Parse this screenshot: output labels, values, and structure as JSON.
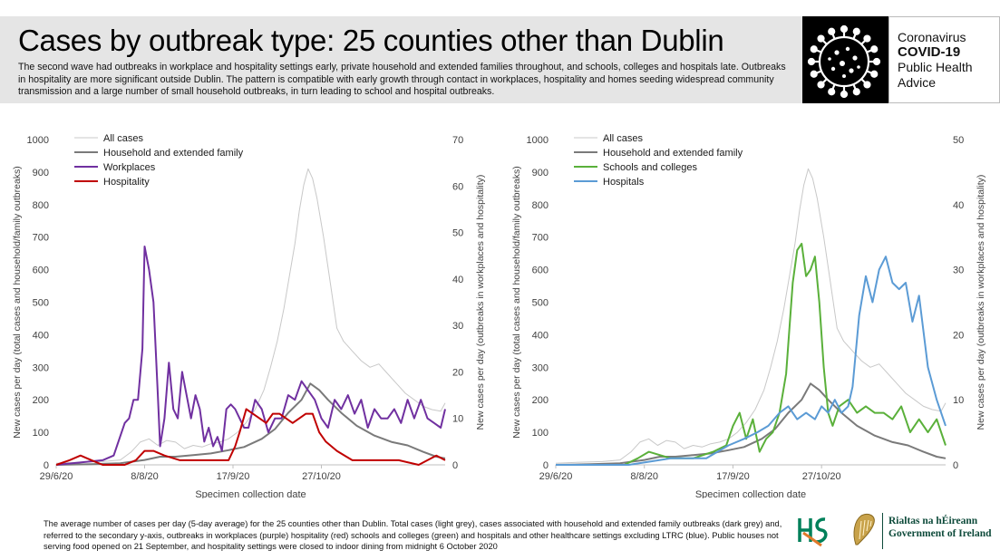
{
  "header": {
    "title": "Cases by outbreak type: 25 counties other than Dublin",
    "subtitle": "The second wave had outbreaks in workplace and hospitality settings early, private household and extended families throughout, and schools, colleges and hospitals late. Outbreaks in hospitality are more significant outside Dublin. The pattern is compatible with early growth through contact in workplaces, hospitality and homes seeding widespread community transmission and a large number of small household outbreaks, in turn leading to school and hospital outbreaks."
  },
  "branding": {
    "line1": "Coronavirus",
    "line2": "COVID-19",
    "line3": "Public Health",
    "line4": "Advice",
    "hse_logo": "HSE",
    "harp_icon": "harp-icon",
    "gov_line1": "Rialtas na hÉireann",
    "gov_line2": "Government of Ireland"
  },
  "colors": {
    "all_cases": "#c8c8c8",
    "household": "#7a7a7a",
    "workplaces": "#7030a0",
    "hospitality": "#c00000",
    "schools": "#5ab03a",
    "hospitals": "#5b9bd5"
  },
  "footnote": "The average number of cases per day (5-day average) for the 25 counties other than Dublin. Total cases (light grey), cases associated with household and extended family outbreaks (dark grey) and, referred to the secondary y-axis, outbreaks in workplaces (purple) hospitality (red) schools and colleges (green) and hospitals and other healthcare settings excluding LTRC (blue). Public houses not serving food opened on 21 September, and hospitality settings were closed to indoor dining from midnight 6 October 2020",
  "chart_data": [
    {
      "type": "line",
      "xlabel": "Specimen collection date",
      "ylabel": "New cases per day (total cases and household/family outbreaks)",
      "y2label": "New cases per day (outbreaks in workplaces and hospitality)",
      "x_range": [
        "2020-06-29",
        "2020-12-22"
      ],
      "ylim": [
        0,
        1000
      ],
      "y2lim": [
        0,
        70
      ],
      "yticks": [
        "0",
        "100",
        "200",
        "300",
        "400",
        "500",
        "600",
        "700",
        "800",
        "900",
        "1000"
      ],
      "y2ticks": [
        "0",
        "10",
        "20",
        "30",
        "40",
        "50",
        "60",
        "70"
      ],
      "xticks": [
        {
          "label": "29/6/20",
          "date": "2020-06-29"
        },
        {
          "label": "8/8/20",
          "date": "2020-08-08"
        },
        {
          "label": "17/9/20",
          "date": "2020-09-17"
        },
        {
          "label": "27/10/20",
          "date": "2020-10-27"
        }
      ],
      "legend_position": "top-left",
      "series": [
        {
          "name": "All cases",
          "axis": "primary",
          "color": "#c8c8c8",
          "x": [
            "2020-06-29",
            "2020-07-10",
            "2020-07-20",
            "2020-07-28",
            "2020-08-02",
            "2020-08-06",
            "2020-08-10",
            "2020-08-14",
            "2020-08-18",
            "2020-08-22",
            "2020-08-26",
            "2020-08-30",
            "2020-09-03",
            "2020-09-07",
            "2020-09-11",
            "2020-09-15",
            "2020-09-19",
            "2020-09-23",
            "2020-09-27",
            "2020-10-01",
            "2020-10-04",
            "2020-10-07",
            "2020-10-10",
            "2020-10-13",
            "2020-10-15",
            "2020-10-17",
            "2020-10-19",
            "2020-10-21",
            "2020-10-23",
            "2020-10-25",
            "2020-10-28",
            "2020-10-31",
            "2020-11-03",
            "2020-11-06",
            "2020-11-10",
            "2020-11-14",
            "2020-11-18",
            "2020-11-22",
            "2020-11-26",
            "2020-11-30",
            "2020-12-04",
            "2020-12-08",
            "2020-12-12",
            "2020-12-16",
            "2020-12-20",
            "2020-12-22"
          ],
          "y": [
            5,
            8,
            10,
            15,
            40,
            70,
            80,
            60,
            75,
            70,
            50,
            60,
            55,
            65,
            70,
            80,
            100,
            130,
            170,
            230,
            300,
            380,
            480,
            600,
            680,
            780,
            860,
            910,
            880,
            820,
            700,
            560,
            420,
            380,
            350,
            320,
            300,
            310,
            280,
            250,
            220,
            200,
            180,
            170,
            165,
            190
          ]
        },
        {
          "name": "Household and extended family",
          "axis": "primary",
          "color": "#7a7a7a",
          "x": [
            "2020-06-29",
            "2020-07-15",
            "2020-07-28",
            "2020-08-08",
            "2020-08-15",
            "2020-08-22",
            "2020-08-30",
            "2020-09-07",
            "2020-09-15",
            "2020-09-22",
            "2020-09-30",
            "2020-10-06",
            "2020-10-12",
            "2020-10-18",
            "2020-10-22",
            "2020-10-26",
            "2020-10-30",
            "2020-11-05",
            "2020-11-12",
            "2020-11-20",
            "2020-11-28",
            "2020-12-05",
            "2020-12-12",
            "2020-12-18",
            "2020-12-22"
          ],
          "y": [
            0,
            2,
            5,
            15,
            25,
            25,
            30,
            35,
            45,
            55,
            80,
            110,
            160,
            200,
            250,
            230,
            200,
            160,
            120,
            90,
            70,
            60,
            40,
            25,
            20
          ]
        },
        {
          "name": "Workplaces",
          "axis": "secondary",
          "color": "#7030a0",
          "x": [
            "2020-06-29",
            "2020-07-20",
            "2020-07-25",
            "2020-07-30",
            "2020-08-01",
            "2020-08-03",
            "2020-08-05",
            "2020-08-07",
            "2020-08-08",
            "2020-08-10",
            "2020-08-12",
            "2020-08-14",
            "2020-08-15",
            "2020-08-17",
            "2020-08-19",
            "2020-08-21",
            "2020-08-23",
            "2020-08-25",
            "2020-08-27",
            "2020-08-29",
            "2020-08-31",
            "2020-09-02",
            "2020-09-04",
            "2020-09-06",
            "2020-09-08",
            "2020-09-10",
            "2020-09-12",
            "2020-09-14",
            "2020-09-16",
            "2020-09-18",
            "2020-09-20",
            "2020-09-22",
            "2020-09-24",
            "2020-09-27",
            "2020-09-30",
            "2020-10-03",
            "2020-10-06",
            "2020-10-09",
            "2020-10-12",
            "2020-10-15",
            "2020-10-18",
            "2020-10-21",
            "2020-10-24",
            "2020-10-27",
            "2020-10-30",
            "2020-11-02",
            "2020-11-05",
            "2020-11-08",
            "2020-11-11",
            "2020-11-14",
            "2020-11-17",
            "2020-11-20",
            "2020-11-23",
            "2020-11-26",
            "2020-11-29",
            "2020-12-02",
            "2020-12-05",
            "2020-12-08",
            "2020-12-11",
            "2020-12-14",
            "2020-12-17",
            "2020-12-20",
            "2020-12-22"
          ],
          "y": [
            0,
            1,
            2,
            9,
            10,
            14,
            14,
            25,
            47,
            42,
            35,
            15,
            4,
            10,
            22,
            12,
            10,
            20,
            15,
            10,
            15,
            12,
            5,
            8,
            4,
            6,
            3,
            12,
            13,
            12,
            10,
            8,
            8,
            14,
            12,
            7,
            10,
            10,
            15,
            14,
            18,
            16,
            14,
            10,
            8,
            14,
            12,
            15,
            11,
            14,
            8,
            12,
            10,
            10,
            12,
            9,
            14,
            10,
            14,
            10,
            9,
            8,
            12
          ]
        },
        {
          "name": "Hospitality",
          "axis": "secondary",
          "color": "#c00000",
          "x": [
            "2020-06-29",
            "2020-07-05",
            "2020-07-10",
            "2020-07-15",
            "2020-07-20",
            "2020-07-25",
            "2020-07-30",
            "2020-08-04",
            "2020-08-08",
            "2020-08-12",
            "2020-08-17",
            "2020-08-24",
            "2020-09-01",
            "2020-09-08",
            "2020-09-15",
            "2020-09-18",
            "2020-09-20",
            "2020-09-23",
            "2020-09-26",
            "2020-09-29",
            "2020-10-02",
            "2020-10-05",
            "2020-10-08",
            "2020-10-11",
            "2020-10-14",
            "2020-10-17",
            "2020-10-20",
            "2020-10-23",
            "2020-10-26",
            "2020-10-29",
            "2020-11-03",
            "2020-11-10",
            "2020-11-20",
            "2020-12-01",
            "2020-12-10",
            "2020-12-18",
            "2020-12-22"
          ],
          "y": [
            0,
            1,
            2,
            1,
            0,
            0,
            0,
            1,
            3,
            3,
            2,
            1,
            1,
            1,
            1,
            4,
            7,
            12,
            11,
            10,
            9,
            11,
            11,
            10,
            9,
            10,
            11,
            11,
            7,
            5,
            3,
            1,
            1,
            1,
            0,
            2,
            1
          ]
        }
      ]
    },
    {
      "type": "line",
      "xlabel": "Specimen collection date",
      "ylabel": "New cases per day (total cases and household/family outbreaks)",
      "y2label": "New cases per day (outbreaks in workplaces and hospitality)",
      "x_range": [
        "2020-06-29",
        "2020-12-22"
      ],
      "ylim": [
        0,
        1000
      ],
      "y2lim": [
        0,
        50
      ],
      "yticks": [
        "0",
        "100",
        "200",
        "300",
        "400",
        "500",
        "600",
        "700",
        "800",
        "900",
        "1000"
      ],
      "y2ticks": [
        "0",
        "10",
        "20",
        "30",
        "40",
        "50"
      ],
      "xticks": [
        {
          "label": "29/6/20",
          "date": "2020-06-29"
        },
        {
          "label": "8/8/20",
          "date": "2020-08-08"
        },
        {
          "label": "17/9/20",
          "date": "2020-09-17"
        },
        {
          "label": "27/10/20",
          "date": "2020-10-27"
        }
      ],
      "legend_position": "top-left",
      "series": [
        {
          "name": "All cases",
          "axis": "primary",
          "color": "#c8c8c8",
          "x": [
            "2020-06-29",
            "2020-07-10",
            "2020-07-20",
            "2020-07-28",
            "2020-08-02",
            "2020-08-06",
            "2020-08-10",
            "2020-08-14",
            "2020-08-18",
            "2020-08-22",
            "2020-08-26",
            "2020-08-30",
            "2020-09-03",
            "2020-09-07",
            "2020-09-11",
            "2020-09-15",
            "2020-09-19",
            "2020-09-23",
            "2020-09-27",
            "2020-10-01",
            "2020-10-04",
            "2020-10-07",
            "2020-10-10",
            "2020-10-13",
            "2020-10-15",
            "2020-10-17",
            "2020-10-19",
            "2020-10-21",
            "2020-10-23",
            "2020-10-25",
            "2020-10-28",
            "2020-10-31",
            "2020-11-03",
            "2020-11-06",
            "2020-11-10",
            "2020-11-14",
            "2020-11-18",
            "2020-11-22",
            "2020-11-26",
            "2020-11-30",
            "2020-12-04",
            "2020-12-08",
            "2020-12-12",
            "2020-12-16",
            "2020-12-20",
            "2020-12-22"
          ],
          "y": [
            5,
            8,
            10,
            15,
            40,
            70,
            80,
            60,
            75,
            70,
            50,
            60,
            55,
            65,
            70,
            80,
            100,
            130,
            170,
            230,
            300,
            380,
            480,
            600,
            680,
            780,
            860,
            910,
            880,
            820,
            700,
            560,
            420,
            380,
            350,
            320,
            300,
            310,
            280,
            250,
            220,
            200,
            180,
            170,
            165,
            190
          ]
        },
        {
          "name": "Household and extended family",
          "axis": "primary",
          "color": "#7a7a7a",
          "x": [
            "2020-06-29",
            "2020-07-15",
            "2020-07-28",
            "2020-08-08",
            "2020-08-15",
            "2020-08-22",
            "2020-08-30",
            "2020-09-07",
            "2020-09-15",
            "2020-09-22",
            "2020-09-30",
            "2020-10-06",
            "2020-10-12",
            "2020-10-18",
            "2020-10-22",
            "2020-10-26",
            "2020-10-30",
            "2020-11-05",
            "2020-11-12",
            "2020-11-20",
            "2020-11-28",
            "2020-12-05",
            "2020-12-12",
            "2020-12-18",
            "2020-12-22"
          ],
          "y": [
            0,
            2,
            5,
            15,
            25,
            25,
            30,
            35,
            45,
            55,
            80,
            110,
            160,
            200,
            250,
            230,
            200,
            160,
            120,
            90,
            70,
            60,
            40,
            25,
            20
          ]
        },
        {
          "name": "Schools and colleges",
          "axis": "secondary",
          "color": "#5ab03a",
          "x": [
            "2020-06-29",
            "2020-07-30",
            "2020-08-05",
            "2020-08-10",
            "2020-08-20",
            "2020-08-30",
            "2020-09-08",
            "2020-09-14",
            "2020-09-17",
            "2020-09-20",
            "2020-09-23",
            "2020-09-26",
            "2020-09-29",
            "2020-10-02",
            "2020-10-05",
            "2020-10-08",
            "2020-10-11",
            "2020-10-14",
            "2020-10-16",
            "2020-10-18",
            "2020-10-20",
            "2020-10-22",
            "2020-10-24",
            "2020-10-26",
            "2020-10-28",
            "2020-10-30",
            "2020-11-01",
            "2020-11-04",
            "2020-11-08",
            "2020-11-12",
            "2020-11-16",
            "2020-11-20",
            "2020-11-24",
            "2020-11-28",
            "2020-12-02",
            "2020-12-06",
            "2020-12-10",
            "2020-12-14",
            "2020-12-18",
            "2020-12-22"
          ],
          "y": [
            0,
            0,
            1,
            2,
            1,
            1,
            2,
            3,
            6,
            8,
            4,
            7,
            2,
            4,
            5,
            8,
            14,
            28,
            33,
            34,
            29,
            30,
            32,
            25,
            15,
            8,
            6,
            9,
            10,
            8,
            9,
            8,
            8,
            7,
            9,
            5,
            7,
            5,
            7,
            3
          ]
        },
        {
          "name": "Hospitals",
          "axis": "secondary",
          "color": "#5b9bd5",
          "x": [
            "2020-06-29",
            "2020-08-01",
            "2020-08-20",
            "2020-09-05",
            "2020-09-15",
            "2020-09-22",
            "2020-09-28",
            "2020-10-03",
            "2020-10-08",
            "2020-10-12",
            "2020-10-16",
            "2020-10-20",
            "2020-10-24",
            "2020-10-27",
            "2020-10-30",
            "2020-11-02",
            "2020-11-05",
            "2020-11-08",
            "2020-11-10",
            "2020-11-13",
            "2020-11-16",
            "2020-11-19",
            "2020-11-22",
            "2020-11-25",
            "2020-11-28",
            "2020-12-01",
            "2020-12-04",
            "2020-12-07",
            "2020-12-10",
            "2020-12-14",
            "2020-12-18",
            "2020-12-22"
          ],
          "y": [
            0,
            0,
            1,
            1,
            3,
            4,
            5,
            6,
            8,
            9,
            7,
            8,
            7,
            9,
            8,
            10,
            8,
            9,
            12,
            23,
            29,
            25,
            30,
            32,
            28,
            27,
            28,
            22,
            26,
            15,
            10,
            6
          ]
        }
      ]
    }
  ]
}
